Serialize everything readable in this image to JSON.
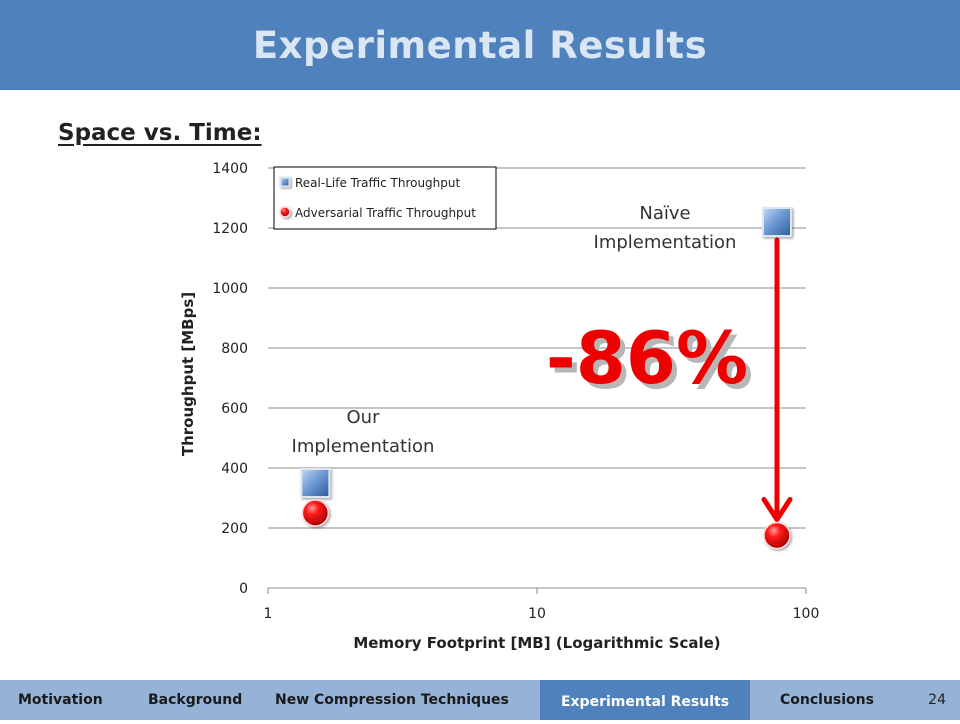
{
  "slide": {
    "title": "Experimental Results",
    "subtitle": "Space vs. Time:",
    "page_number": "24"
  },
  "nav": {
    "items": [
      {
        "label": "Motivation",
        "active": false
      },
      {
        "label": "Background",
        "active": false
      },
      {
        "label": "New Compression Techniques",
        "active": false
      },
      {
        "label": "Experimental Results",
        "active": true
      },
      {
        "label": "Conclusions",
        "active": false
      }
    ]
  },
  "chart_data": {
    "type": "scatter",
    "title": "",
    "xlabel": "Memory Footprint [MB] (Logarithmic Scale)",
    "ylabel": "Throughput [MBps]",
    "x_scale": "log",
    "xlim": [
      1,
      100
    ],
    "ylim": [
      0,
      1400
    ],
    "x_ticks": [
      "1",
      "10",
      "100"
    ],
    "y_ticks": [
      "0",
      "200",
      "400",
      "600",
      "800",
      "1000",
      "1200",
      "1400"
    ],
    "grid": true,
    "legend_position": "top-left",
    "series": [
      {
        "name": "Real-Life Traffic Throughput",
        "marker": "square",
        "color": "#4f81bd",
        "points": [
          {
            "x": 1.5,
            "y": 350
          },
          {
            "x": 78,
            "y": 1220
          }
        ]
      },
      {
        "name": "Adversarial Traffic Throughput",
        "marker": "circle",
        "color": "#e00000",
        "points": [
          {
            "x": 1.5,
            "y": 250
          },
          {
            "x": 78,
            "y": 175
          }
        ]
      }
    ],
    "annotations": {
      "our_impl": [
        "Our",
        "Implementation"
      ],
      "naive_impl": [
        "Naïve",
        "Implementation"
      ],
      "drop_label": "-86%"
    }
  }
}
